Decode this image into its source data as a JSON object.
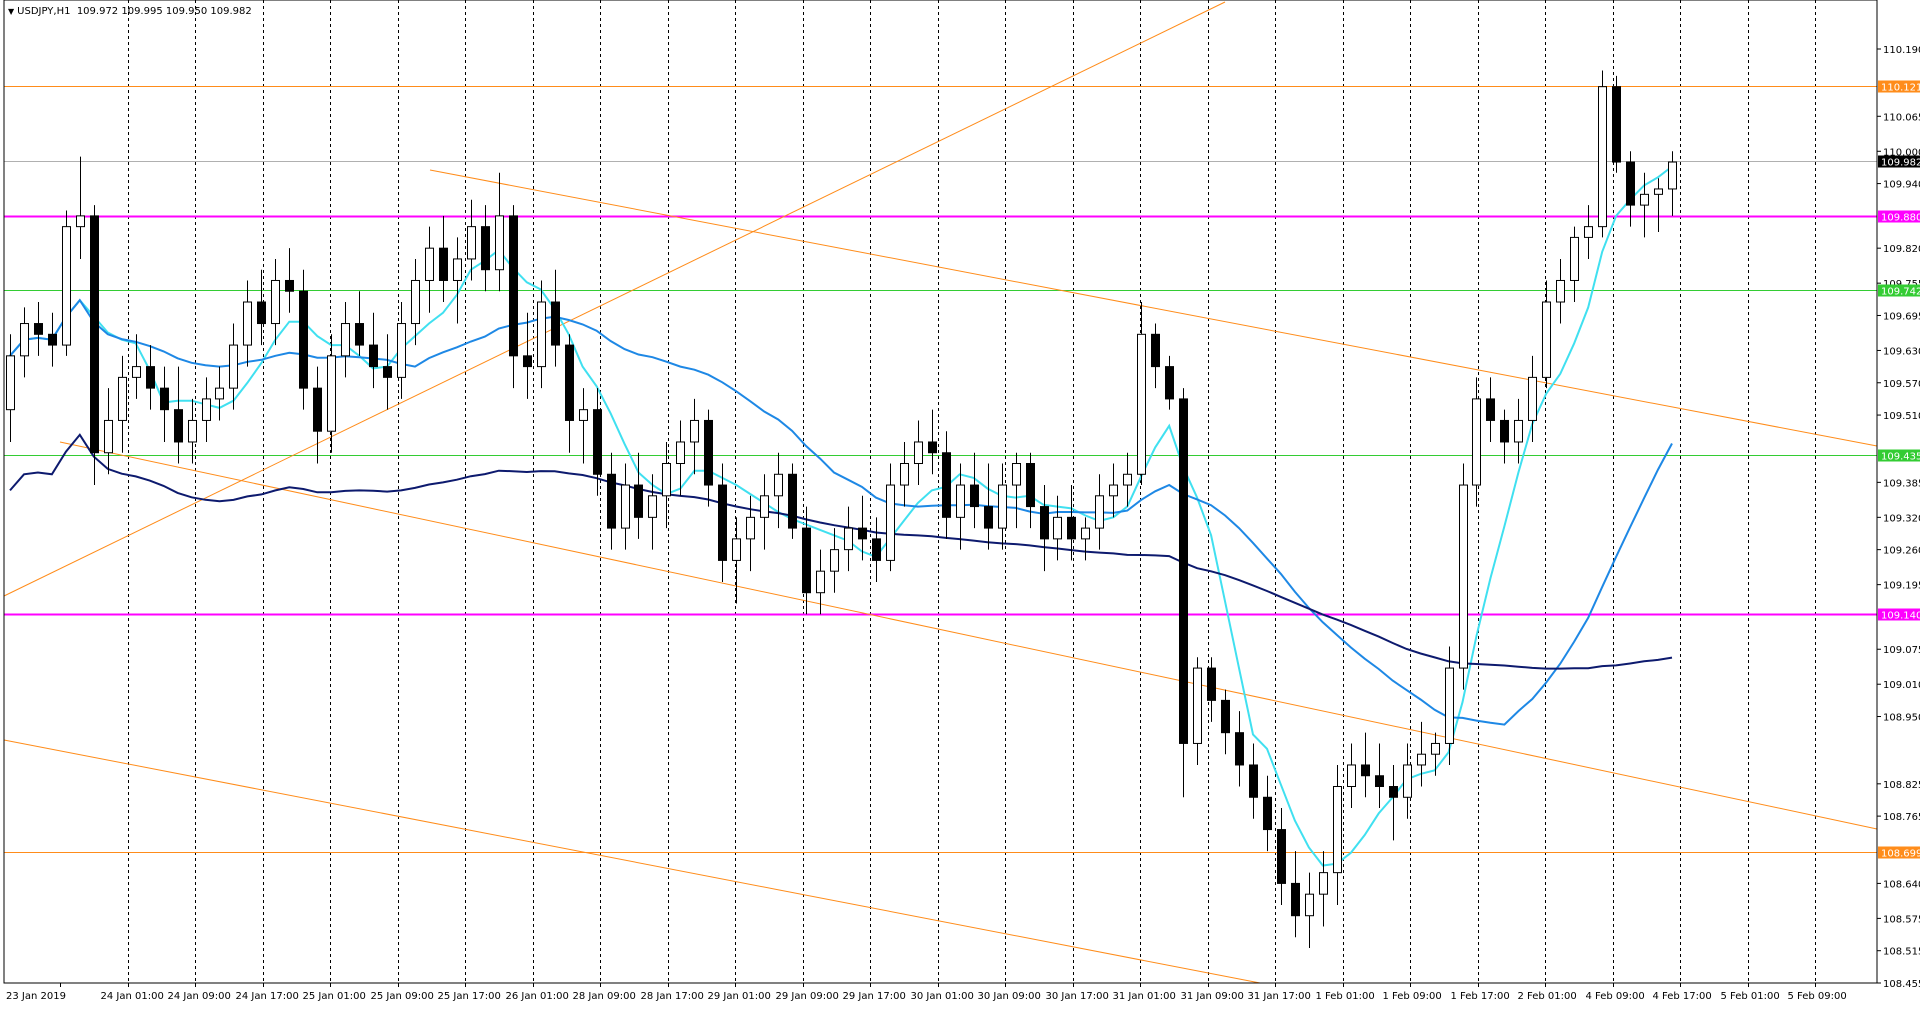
{
  "header": {
    "symbol": "USDJPY,H1",
    "ohlc": "109.972 109.995 109.950 109.982"
  },
  "colors": {
    "background": "#ffffff",
    "bull_candle": "#ffffff",
    "bear_candle": "#000000",
    "ma_fast": "#40e0f0",
    "ma_mid": "#1e88e5",
    "ma_slow": "#0d1a6e",
    "channel": "#ff8c1a",
    "magenta_level": "#ff00ff",
    "green_level": "#33cc33",
    "orange_level": "#ff8c1a",
    "grid": "#000000"
  },
  "chart_data": {
    "type": "candlestick",
    "title": "USDJPY,H1",
    "ylim": [
      108.455,
      110.255
    ],
    "y_ticks": [
      "110.190",
      "110.065",
      "110.000",
      "109.940",
      "109.820",
      "109.755",
      "109.695",
      "109.630",
      "109.570",
      "109.510",
      "109.385",
      "109.320",
      "109.260",
      "109.195",
      "109.075",
      "109.010",
      "108.950",
      "108.825",
      "108.765",
      "108.640",
      "108.575",
      "108.515",
      "108.455"
    ],
    "x_ticks": [
      "23 Jan 2019",
      "24 Jan 01:00",
      "24 Jan 09:00",
      "24 Jan 17:00",
      "25 Jan 01:00",
      "25 Jan 09:00",
      "25 Jan 17:00",
      "26 Jan 01:00",
      "28 Jan 09:00",
      "28 Jan 17:00",
      "29 Jan 01:00",
      "29 Jan 09:00",
      "29 Jan 17:00",
      "30 Jan 01:00",
      "30 Jan 09:00",
      "30 Jan 17:00",
      "31 Jan 01:00",
      "31 Jan 09:00",
      "31 Jan 17:00",
      "1 Feb 01:00",
      "1 Feb 09:00",
      "1 Feb 17:00",
      "2 Feb 01:00",
      "4 Feb 09:00",
      "4 Feb 17:00",
      "5 Feb 01:00",
      "5 Feb 09:00"
    ],
    "current_price": "109.982",
    "horizontal_levels": [
      {
        "value": 110.121,
        "label": "110.121",
        "color": "#ff8c1a"
      },
      {
        "value": 109.88,
        "label": "109.880",
        "color": "#ff00ff"
      },
      {
        "value": 109.742,
        "label": "109.742",
        "color": "#33cc33"
      },
      {
        "value": 109.435,
        "label": "109.435",
        "color": "#33cc33"
      },
      {
        "value": 109.14,
        "label": "109.140",
        "color": "#ff00ff"
      },
      {
        "value": 108.699,
        "label": "108.699",
        "color": "#ff8c1a"
      }
    ],
    "candles": [
      [
        109.52,
        109.66,
        109.46,
        109.62
      ],
      [
        109.62,
        109.71,
        109.58,
        109.68
      ],
      [
        109.68,
        109.72,
        109.62,
        109.66
      ],
      [
        109.66,
        109.7,
        109.6,
        109.64
      ],
      [
        109.64,
        109.89,
        109.62,
        109.86
      ],
      [
        109.86,
        109.99,
        109.8,
        109.88
      ],
      [
        109.88,
        109.9,
        109.38,
        109.44
      ],
      [
        109.44,
        109.56,
        109.4,
        109.5
      ],
      [
        109.5,
        109.62,
        109.44,
        109.58
      ],
      [
        109.58,
        109.66,
        109.54,
        109.6
      ],
      [
        109.6,
        109.64,
        109.52,
        109.56
      ],
      [
        109.56,
        109.6,
        109.46,
        109.52
      ],
      [
        109.52,
        109.6,
        109.42,
        109.46
      ],
      [
        109.46,
        109.54,
        109.42,
        109.5
      ],
      [
        109.5,
        109.58,
        109.46,
        109.54
      ],
      [
        109.54,
        109.6,
        109.5,
        109.56
      ],
      [
        109.56,
        109.68,
        109.52,
        109.64
      ],
      [
        109.64,
        109.76,
        109.6,
        109.72
      ],
      [
        109.72,
        109.78,
        109.64,
        109.68
      ],
      [
        109.68,
        109.8,
        109.64,
        109.76
      ],
      [
        109.76,
        109.82,
        109.7,
        109.74
      ],
      [
        109.74,
        109.78,
        109.52,
        109.56
      ],
      [
        109.56,
        109.6,
        109.42,
        109.48
      ],
      [
        109.48,
        109.66,
        109.44,
        109.62
      ],
      [
        109.62,
        109.72,
        109.58,
        109.68
      ],
      [
        109.68,
        109.74,
        109.62,
        109.64
      ],
      [
        109.64,
        109.7,
        109.56,
        109.6
      ],
      [
        109.6,
        109.66,
        109.52,
        109.58
      ],
      [
        109.58,
        109.72,
        109.54,
        109.68
      ],
      [
        109.68,
        109.8,
        109.64,
        109.76
      ],
      [
        109.76,
        109.86,
        109.7,
        109.82
      ],
      [
        109.82,
        109.88,
        109.72,
        109.76
      ],
      [
        109.76,
        109.84,
        109.68,
        109.8
      ],
      [
        109.8,
        109.91,
        109.76,
        109.86
      ],
      [
        109.86,
        109.9,
        109.74,
        109.78
      ],
      [
        109.78,
        109.96,
        109.74,
        109.88
      ],
      [
        109.88,
        109.9,
        109.56,
        109.62
      ],
      [
        109.62,
        109.7,
        109.54,
        109.6
      ],
      [
        109.6,
        109.76,
        109.56,
        109.72
      ],
      [
        109.72,
        109.78,
        109.6,
        109.64
      ],
      [
        109.64,
        109.66,
        109.44,
        109.5
      ],
      [
        109.5,
        109.56,
        109.42,
        109.52
      ],
      [
        109.52,
        109.56,
        109.36,
        109.4
      ],
      [
        109.4,
        109.44,
        109.26,
        109.3
      ],
      [
        109.3,
        109.42,
        109.26,
        109.38
      ],
      [
        109.38,
        109.44,
        109.28,
        109.32
      ],
      [
        109.32,
        109.4,
        109.26,
        109.36
      ],
      [
        109.36,
        109.46,
        109.3,
        109.42
      ],
      [
        109.42,
        109.5,
        109.36,
        109.46
      ],
      [
        109.46,
        109.54,
        109.4,
        109.5
      ],
      [
        109.5,
        109.52,
        109.34,
        109.38
      ],
      [
        109.38,
        109.42,
        109.2,
        109.24
      ],
      [
        109.24,
        109.32,
        109.16,
        109.28
      ],
      [
        109.28,
        109.36,
        109.22,
        109.32
      ],
      [
        109.32,
        109.4,
        109.26,
        109.36
      ],
      [
        109.36,
        109.44,
        109.3,
        109.4
      ],
      [
        109.4,
        109.42,
        109.28,
        109.3
      ],
      [
        109.3,
        109.34,
        109.14,
        109.18
      ],
      [
        109.18,
        109.26,
        109.14,
        109.22
      ],
      [
        109.22,
        109.3,
        109.18,
        109.26
      ],
      [
        109.26,
        109.34,
        109.22,
        109.3
      ],
      [
        109.3,
        109.36,
        109.24,
        109.28
      ],
      [
        109.28,
        109.32,
        109.2,
        109.24
      ],
      [
        109.24,
        109.42,
        109.22,
        109.38
      ],
      [
        109.38,
        109.46,
        109.34,
        109.42
      ],
      [
        109.42,
        109.5,
        109.38,
        109.46
      ],
      [
        109.46,
        109.52,
        109.4,
        109.44
      ],
      [
        109.44,
        109.48,
        109.28,
        109.32
      ],
      [
        109.32,
        109.42,
        109.26,
        109.38
      ],
      [
        109.38,
        109.44,
        109.3,
        109.34
      ],
      [
        109.34,
        109.42,
        109.26,
        109.3
      ],
      [
        109.3,
        109.42,
        109.26,
        109.38
      ],
      [
        109.38,
        109.44,
        109.3,
        109.42
      ],
      [
        109.42,
        109.44,
        109.3,
        109.34
      ],
      [
        109.34,
        109.38,
        109.22,
        109.28
      ],
      [
        109.28,
        109.36,
        109.24,
        109.32
      ],
      [
        109.32,
        109.38,
        109.24,
        109.28
      ],
      [
        109.28,
        109.32,
        109.24,
        109.3
      ],
      [
        109.3,
        109.4,
        109.26,
        109.36
      ],
      [
        109.36,
        109.42,
        109.32,
        109.38
      ],
      [
        109.38,
        109.44,
        109.34,
        109.4
      ],
      [
        109.4,
        109.72,
        109.38,
        109.66
      ],
      [
        109.66,
        109.68,
        109.56,
        109.6
      ],
      [
        109.6,
        109.62,
        109.52,
        109.54
      ],
      [
        109.54,
        109.56,
        108.8,
        108.9
      ],
      [
        108.9,
        109.06,
        108.86,
        109.04
      ],
      [
        109.04,
        109.06,
        108.94,
        108.98
      ],
      [
        108.98,
        109.0,
        108.88,
        108.92
      ],
      [
        108.92,
        108.96,
        108.82,
        108.86
      ],
      [
        108.86,
        108.9,
        108.76,
        108.8
      ],
      [
        108.8,
        108.84,
        108.7,
        108.74
      ],
      [
        108.74,
        108.78,
        108.6,
        108.64
      ],
      [
        108.64,
        108.7,
        108.54,
        108.58
      ],
      [
        108.58,
        108.66,
        108.52,
        108.62
      ],
      [
        108.62,
        108.7,
        108.56,
        108.66
      ],
      [
        108.66,
        108.86,
        108.6,
        108.82
      ],
      [
        108.82,
        108.9,
        108.78,
        108.86
      ],
      [
        108.86,
        108.92,
        108.8,
        108.84
      ],
      [
        108.84,
        108.9,
        108.78,
        108.82
      ],
      [
        108.82,
        108.86,
        108.72,
        108.8
      ],
      [
        108.8,
        108.9,
        108.76,
        108.86
      ],
      [
        108.86,
        108.94,
        108.82,
        108.88
      ],
      [
        108.88,
        108.92,
        108.84,
        108.9
      ],
      [
        108.9,
        109.08,
        108.86,
        109.04
      ],
      [
        109.04,
        109.42,
        109.0,
        109.38
      ],
      [
        109.38,
        109.58,
        109.34,
        109.54
      ],
      [
        109.54,
        109.58,
        109.46,
        109.5
      ],
      [
        109.5,
        109.52,
        109.42,
        109.46
      ],
      [
        109.46,
        109.54,
        109.42,
        109.5
      ],
      [
        109.5,
        109.62,
        109.46,
        109.58
      ],
      [
        109.58,
        109.76,
        109.56,
        109.72
      ],
      [
        109.72,
        109.8,
        109.68,
        109.76
      ],
      [
        109.76,
        109.86,
        109.72,
        109.84
      ],
      [
        109.84,
        109.9,
        109.8,
        109.86
      ],
      [
        109.86,
        110.15,
        109.84,
        110.12
      ],
      [
        110.12,
        110.14,
        109.96,
        109.98
      ],
      [
        109.98,
        110.0,
        109.86,
        109.9
      ],
      [
        109.9,
        109.96,
        109.84,
        109.92
      ],
      [
        109.92,
        109.95,
        109.85,
        109.93
      ],
      [
        109.93,
        110.0,
        109.88,
        109.98
      ]
    ]
  }
}
